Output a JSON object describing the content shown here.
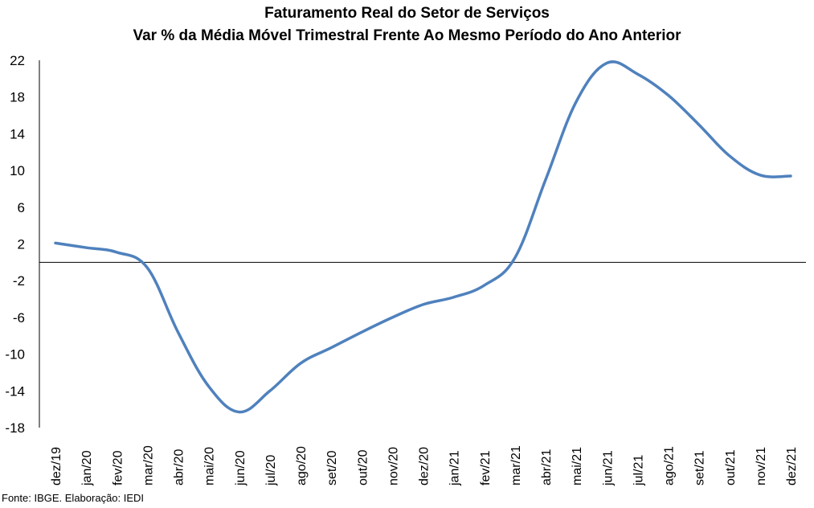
{
  "chart_data": {
    "type": "line",
    "title": "Faturamento Real do Setor de Serviços",
    "subtitle": "Var % da Média Móvel Trimestral Frente Ao Mesmo Período do Ano Anterior",
    "xlabel": "",
    "ylabel": "",
    "categories": [
      "dez/19",
      "jan/20",
      "fev/20",
      "mar/20",
      "abr/20",
      "mai/20",
      "jun/20",
      "jul/20",
      "ago/20",
      "set/20",
      "out/20",
      "nov/20",
      "dez/20",
      "jan/21",
      "fev/21",
      "mar/21",
      "abr/21",
      "mai/21",
      "jun/21",
      "jul/21",
      "ago/21",
      "set/21",
      "out/21",
      "nov/21",
      "dez/21"
    ],
    "series": [
      {
        "values": [
          2.1,
          1.6,
          1.1,
          -0.6,
          -7.6,
          -13.5,
          -16.3,
          -14.0,
          -11.0,
          -9.3,
          -7.6,
          -6.0,
          -4.6,
          -3.8,
          -2.5,
          0.5,
          9.0,
          17.5,
          21.7,
          20.5,
          18.2,
          15.0,
          11.6,
          9.5,
          9.4
        ],
        "color": "#4F81BD"
      }
    ],
    "ylim": [
      -18,
      22
    ],
    "yticks": [
      22,
      18,
      14,
      10,
      6,
      2,
      -2,
      -6,
      -10,
      -14,
      -18
    ],
    "grid": false,
    "legend": "none",
    "zero_line_color": "#000000"
  },
  "source_note": "Fonte: IBGE. Elaboração: IEDI"
}
